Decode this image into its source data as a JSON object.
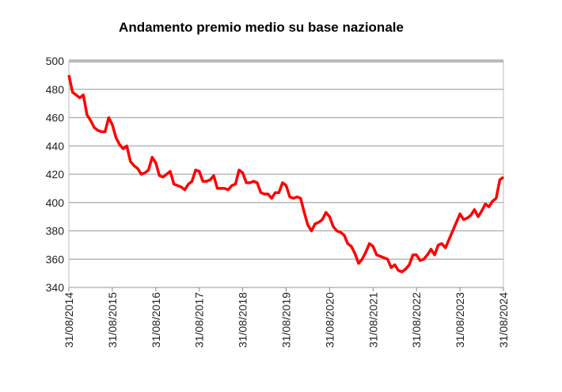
{
  "chart_data": {
    "type": "line",
    "title": "Andamento premio medio su base nazionale",
    "categories": [
      "31/08/2014",
      null,
      null,
      null,
      null,
      null,
      null,
      null,
      null,
      null,
      null,
      null,
      "31/08/2015",
      null,
      null,
      null,
      null,
      null,
      null,
      null,
      null,
      null,
      null,
      null,
      "31/08/2016",
      null,
      null,
      null,
      null,
      null,
      null,
      null,
      null,
      null,
      null,
      null,
      "31/08/2017",
      null,
      null,
      null,
      null,
      null,
      null,
      null,
      null,
      null,
      null,
      null,
      "31/08/2018",
      null,
      null,
      null,
      null,
      null,
      null,
      null,
      null,
      null,
      null,
      null,
      "31/08/2019",
      null,
      null,
      null,
      null,
      null,
      null,
      null,
      null,
      null,
      null,
      null,
      "31/08/2020",
      null,
      null,
      null,
      null,
      null,
      null,
      null,
      null,
      null,
      null,
      null,
      "31/08/2021",
      null,
      null,
      null,
      null,
      null,
      null,
      null,
      null,
      null,
      null,
      null,
      "31/08/2022",
      null,
      null,
      null,
      null,
      null,
      null,
      null,
      null,
      null,
      null,
      null,
      "31/08/2023",
      null,
      null,
      null,
      null,
      null,
      null,
      null,
      null,
      null,
      null,
      null,
      "31/08/2024"
    ],
    "values": [
      490,
      478,
      476,
      474,
      476,
      462,
      458,
      453,
      451,
      450,
      450,
      460,
      455,
      446,
      441,
      438,
      440,
      429,
      426,
      424,
      420,
      421,
      423,
      432,
      428,
      419,
      418,
      420,
      422,
      413,
      412,
      411,
      409,
      413,
      415,
      423,
      422,
      415,
      415,
      416,
      419,
      410,
      410,
      410,
      409,
      412,
      413,
      423,
      421,
      414,
      414,
      415,
      414,
      407,
      406,
      406,
      403,
      407,
      407,
      414,
      412,
      404,
      403,
      404,
      403,
      393,
      384,
      380,
      385,
      386,
      388,
      393,
      390,
      383,
      380,
      379,
      377,
      371,
      369,
      364,
      357,
      360,
      365,
      371,
      369,
      363,
      362,
      361,
      360,
      354,
      356,
      352,
      351,
      353,
      356,
      363,
      363,
      359,
      360,
      363,
      367,
      363,
      370,
      371,
      368,
      374,
      380,
      386,
      392,
      388,
      389,
      391,
      395,
      390,
      394,
      399,
      397,
      401,
      403,
      416,
      418
    ],
    "color": "#ff0000",
    "ylim": [
      340,
      500
    ],
    "yticks": [
      340,
      360,
      380,
      400,
      420,
      440,
      460,
      480,
      500
    ],
    "grid": true
  }
}
